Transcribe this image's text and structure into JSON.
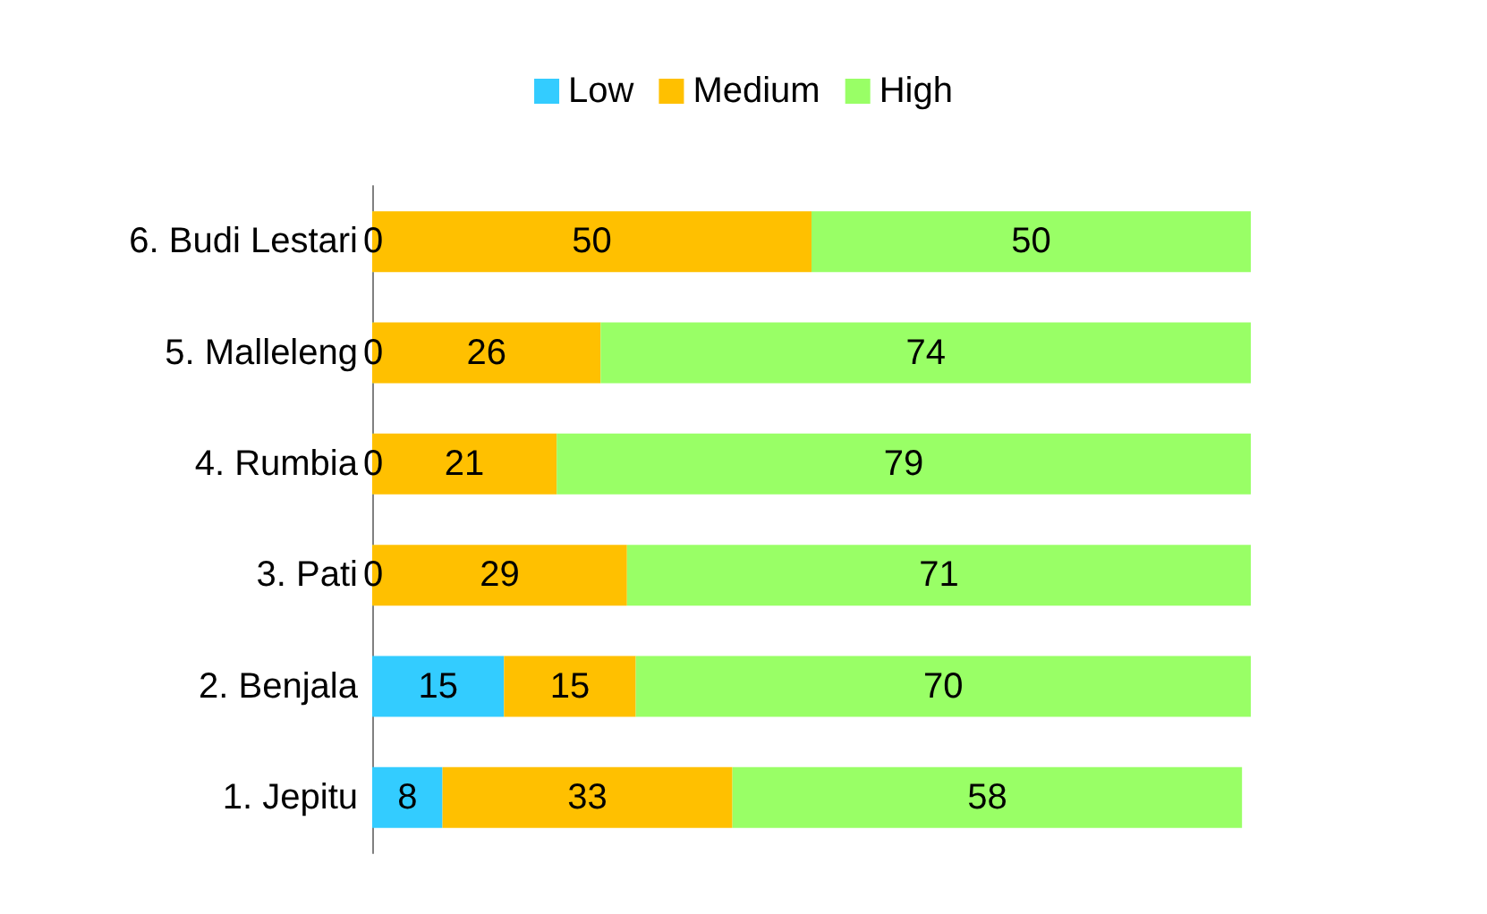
{
  "chart_data": {
    "type": "bar",
    "orientation": "horizontal",
    "stacked": true,
    "data_labels": true,
    "legend": "top",
    "categories": [
      "6. Budi Lestari",
      "5. Malleleng",
      "4. Rumbia",
      "3. Pati",
      "2. Benjala",
      "1. Jepitu"
    ],
    "series": [
      {
        "name": "Low",
        "color": "#33ccff",
        "values": [
          0,
          0,
          0,
          0,
          15,
          8
        ]
      },
      {
        "name": "Medium",
        "color": "#ffc000",
        "values": [
          50,
          26,
          21,
          29,
          15,
          33
        ]
      },
      {
        "name": "High",
        "color": "#99ff66",
        "values": [
          50,
          74,
          79,
          71,
          70,
          58
        ]
      }
    ]
  }
}
